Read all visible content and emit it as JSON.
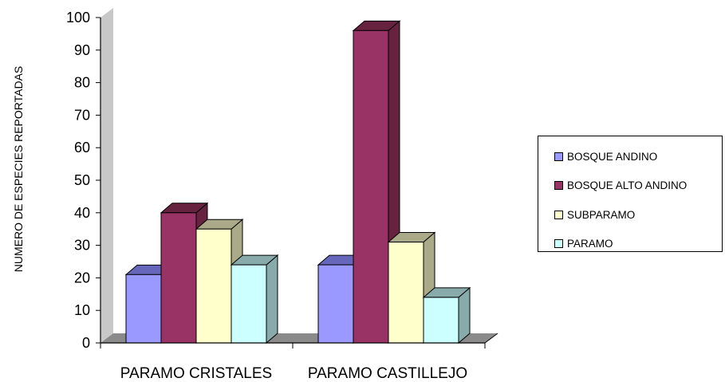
{
  "chart_data": {
    "type": "bar",
    "categories": [
      "PARAMO CRISTALES",
      "PARAMO CASTILLEJO"
    ],
    "series": [
      {
        "name": "BOSQUE ANDINO",
        "values": [
          21,
          24
        ],
        "color": "#9999ff",
        "side_color": "#6666bb"
      },
      {
        "name": "BOSQUE ALTO ANDINO",
        "values": [
          40,
          96
        ],
        "color": "#993366",
        "side_color": "#66223f"
      },
      {
        "name": "SUBPARAMO",
        "values": [
          35,
          31
        ],
        "color": "#ffffcc",
        "side_color": "#aaaa88"
      },
      {
        "name": "PARAMO",
        "values": [
          24,
          14
        ],
        "color": "#ccffff",
        "side_color": "#88aaaa"
      }
    ],
    "ylabel": "NUMERO DE ESPECIES REPORTADAS",
    "xlabel": "",
    "title": "",
    "ylim": [
      0,
      100
    ],
    "yticks": [
      0,
      10,
      20,
      30,
      40,
      50,
      60,
      70,
      80,
      90,
      100
    ],
    "style": "3d-column",
    "grid": false,
    "legend_position": "right"
  }
}
